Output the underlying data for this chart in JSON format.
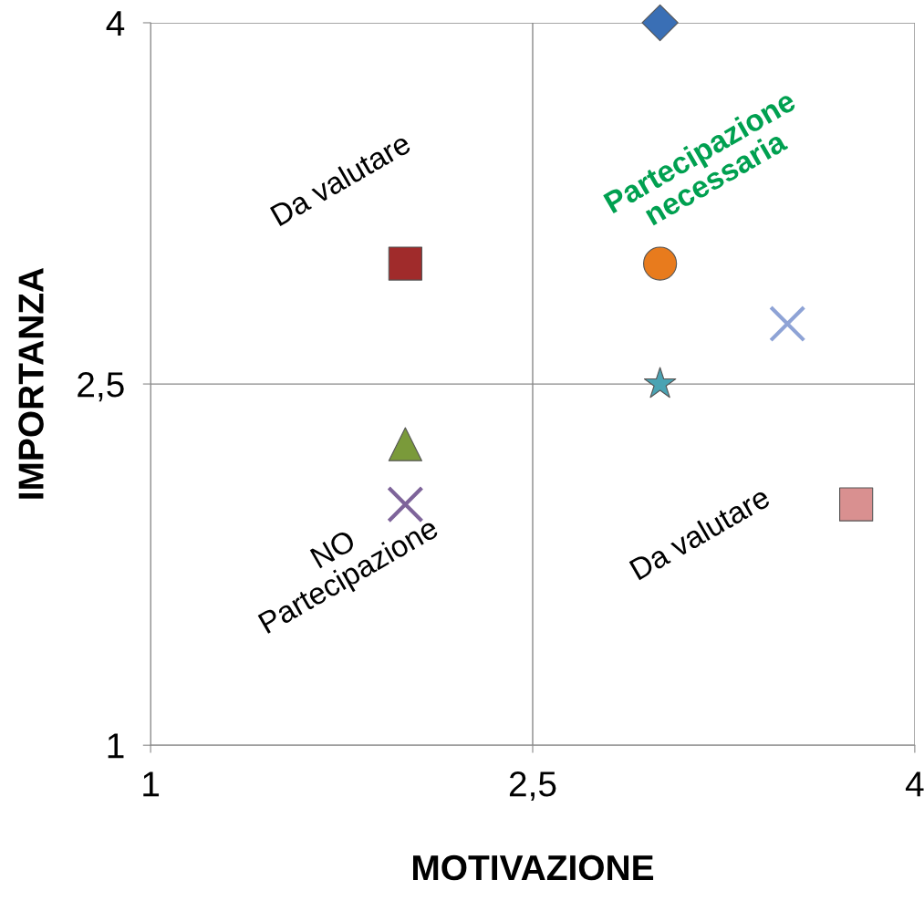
{
  "chart_data": {
    "type": "scatter",
    "xlabel": "MOTIVAZIONE",
    "ylabel": "IMPORTANZA",
    "xlim": [
      1,
      4
    ],
    "ylim": [
      1,
      4
    ],
    "xticks": [
      1,
      {
        "value": 2.5,
        "label": "2,5"
      },
      4
    ],
    "yticks": [
      1,
      {
        "value": 2.5,
        "label": "2,5"
      },
      4
    ],
    "grid": true,
    "series": [
      {
        "color": "#3a6fb5",
        "marker": "diamond",
        "x": [
          3.0
        ],
        "values": [
          4.0
        ]
      },
      {
        "color": "#a02b2b",
        "marker": "square",
        "x": [
          2.0
        ],
        "values": [
          3.0
        ]
      },
      {
        "color": "#e87b1d",
        "marker": "circle",
        "x": [
          3.0
        ],
        "values": [
          3.0
        ]
      },
      {
        "color": "#8ea3d6",
        "marker": "cross",
        "x": [
          3.5
        ],
        "values": [
          2.75
        ]
      },
      {
        "color": "#4aa3b3",
        "marker": "star",
        "x": [
          3.0
        ],
        "values": [
          2.5
        ]
      },
      {
        "color": "#7a9a3a",
        "marker": "triangle",
        "x": [
          2.0
        ],
        "values": [
          2.25
        ]
      },
      {
        "color": "#7e649a",
        "marker": "cross",
        "x": [
          2.0
        ],
        "values": [
          2.0
        ]
      },
      {
        "color": "#d99090",
        "marker": "square",
        "x": [
          3.77
        ],
        "values": [
          2.0
        ]
      }
    ],
    "annotations": [
      "Da valutare",
      "Partecipazione\nnecessaria",
      "Da valutare",
      "NO\nPartecipazione"
    ]
  }
}
